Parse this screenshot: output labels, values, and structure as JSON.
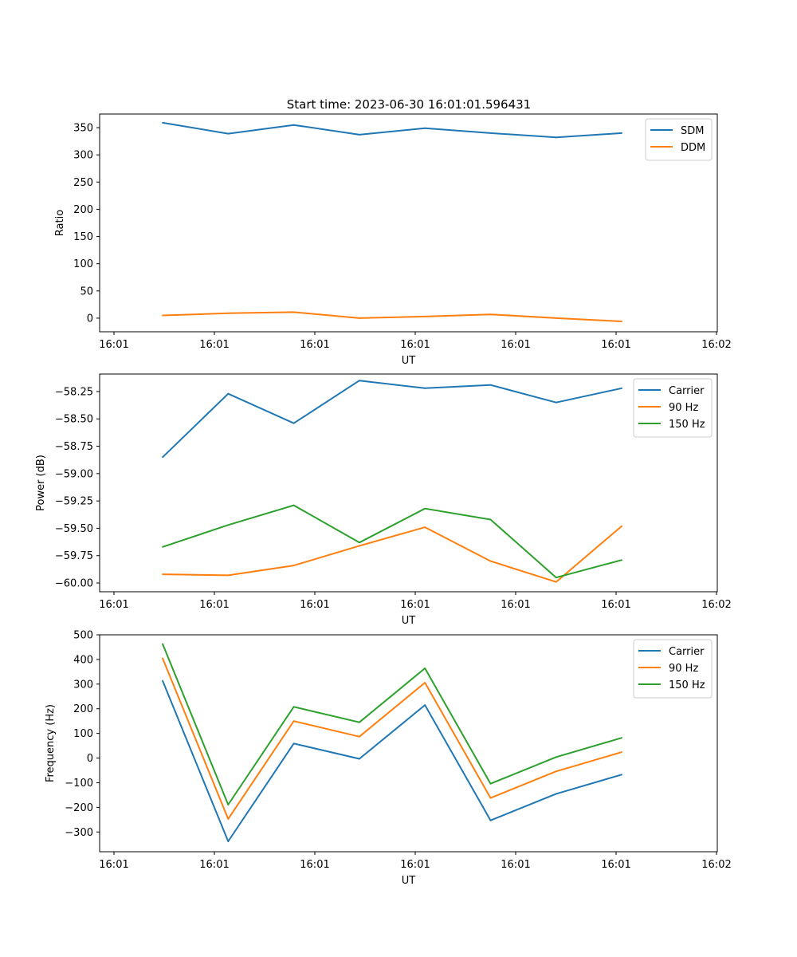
{
  "figure": {
    "title": "Start time: 2023-06-30 16:01:01.596431"
  },
  "chart_data": [
    {
      "type": "line",
      "title": "Start time: 2023-06-30 16:01:01.596431",
      "xlabel": "UT",
      "ylabel": "Ratio",
      "x": [
        0,
        1,
        2,
        3,
        4,
        5,
        6,
        7
      ],
      "x_tick_labels": [
        "16:01",
        "16:01",
        "16:01",
        "16:01",
        "16:01",
        "16:01",
        "16:02"
      ],
      "ylim": [
        -25,
        375
      ],
      "y_ticks": [
        0,
        50,
        100,
        150,
        200,
        250,
        300,
        350
      ],
      "legend_position": "top-right",
      "grid": false,
      "series": [
        {
          "name": "SDM",
          "color": "#1f77b4",
          "values": [
            359,
            339,
            355,
            337,
            349,
            340,
            332,
            340
          ]
        },
        {
          "name": "DDM",
          "color": "#ff7f0e",
          "values": [
            5,
            9,
            11,
            0,
            3,
            7,
            0,
            -6
          ]
        }
      ]
    },
    {
      "type": "line",
      "xlabel": "UT",
      "ylabel": "Power (dB)",
      "x": [
        0,
        1,
        2,
        3,
        4,
        5,
        6,
        7
      ],
      "x_tick_labels": [
        "16:01",
        "16:01",
        "16:01",
        "16:01",
        "16:01",
        "16:01",
        "16:02"
      ],
      "ylim": [
        -60.08,
        -58.09
      ],
      "y_ticks": [
        -60.0,
        -59.75,
        -59.5,
        -59.25,
        -59.0,
        -58.75,
        -58.5,
        -58.25
      ],
      "y_tick_labels": [
        "−60.00",
        "−59.75",
        "−59.50",
        "−59.25",
        "−59.00",
        "−58.75",
        "−58.50",
        "−58.25"
      ],
      "legend_position": "top-right",
      "grid": false,
      "series": [
        {
          "name": "Carrier",
          "color": "#1f77b4",
          "values": [
            -58.85,
            -58.27,
            -58.54,
            -58.15,
            -58.22,
            -58.19,
            -58.35,
            -58.22
          ]
        },
        {
          "name": "90 Hz",
          "color": "#ff7f0e",
          "values": [
            -59.92,
            -59.93,
            -59.84,
            -59.66,
            -59.49,
            -59.8,
            -59.99,
            -59.48
          ]
        },
        {
          "name": "150 Hz",
          "color": "#2ca02c",
          "values": [
            -59.67,
            -59.47,
            -59.29,
            -59.63,
            -59.32,
            -59.42,
            -59.95,
            -59.79
          ]
        }
      ]
    },
    {
      "type": "line",
      "xlabel": "UT",
      "ylabel": "Frequency (Hz)",
      "x": [
        0,
        1,
        2,
        3,
        4,
        5,
        6,
        7
      ],
      "x_tick_labels": [
        "16:01",
        "16:01",
        "16:01",
        "16:01",
        "16:01",
        "16:01",
        "16:02"
      ],
      "ylim": [
        -380,
        500
      ],
      "y_ticks": [
        -300,
        -200,
        -100,
        0,
        100,
        200,
        300,
        400,
        500
      ],
      "y_tick_labels": [
        "−300",
        "−200",
        "−100",
        "0",
        "100",
        "200",
        "300",
        "400",
        "500"
      ],
      "legend_position": "top-right",
      "grid": false,
      "series": [
        {
          "name": "Carrier",
          "color": "#1f77b4",
          "values": [
            314,
            -338,
            59,
            -3,
            215,
            -253,
            -145,
            -67
          ]
        },
        {
          "name": "90 Hz",
          "color": "#ff7f0e",
          "values": [
            405,
            -247,
            150,
            87,
            306,
            -162,
            -54,
            24
          ]
        },
        {
          "name": "150 Hz",
          "color": "#2ca02c",
          "values": [
            463,
            -189,
            208,
            145,
            364,
            -104,
            4,
            82
          ]
        }
      ]
    }
  ]
}
